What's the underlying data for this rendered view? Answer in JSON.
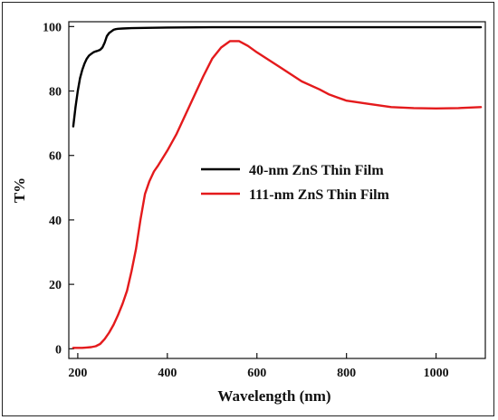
{
  "chart_data": {
    "type": "line",
    "xlabel": "Wavelength (nm)",
    "ylabel": "T%",
    "xlim": [
      180,
      1110
    ],
    "ylim": [
      -3,
      101.5
    ],
    "xticks": [
      200,
      400,
      600,
      800,
      1000
    ],
    "yticks": [
      0,
      20,
      40,
      60,
      80,
      100
    ],
    "legend_position": "center-right",
    "grid": false,
    "series": [
      {
        "name": "40-nm ZnS Thin Film",
        "color": "#000000",
        "x": [
          190,
          195,
          200,
          205,
          210,
          215,
          220,
          225,
          230,
          235,
          240,
          245,
          250,
          255,
          260,
          265,
          270,
          275,
          280,
          285,
          290,
          300,
          320,
          350,
          400,
          500,
          600,
          700,
          800,
          900,
          1000,
          1100
        ],
        "y": [
          69,
          75,
          80,
          84,
          86.5,
          88.5,
          90,
          91,
          91.5,
          92,
          92.3,
          92.5,
          92.8,
          93.5,
          95,
          97,
          98,
          98.5,
          99,
          99.2,
          99.3,
          99.4,
          99.5,
          99.6,
          99.7,
          99.8,
          99.8,
          99.8,
          99.8,
          99.8,
          99.8,
          99.8
        ]
      },
      {
        "name": "111-nm ZnS Thin Film",
        "color": "#e41a1c",
        "x": [
          190,
          200,
          210,
          220,
          230,
          240,
          250,
          260,
          270,
          280,
          290,
          300,
          310,
          320,
          330,
          340,
          350,
          360,
          370,
          380,
          400,
          420,
          440,
          460,
          480,
          500,
          520,
          540,
          560,
          580,
          600,
          650,
          700,
          740,
          760,
          780,
          800,
          850,
          900,
          950,
          1000,
          1050,
          1100
        ],
        "y": [
          0.3,
          0.3,
          0.3,
          0.4,
          0.5,
          0.8,
          1.5,
          3,
          5,
          7.5,
          10.5,
          14,
          18,
          24,
          31,
          40,
          48,
          52,
          55,
          57,
          61.5,
          66.5,
          72.5,
          78.5,
          84.5,
          90,
          93.5,
          95.5,
          95.5,
          94,
          92,
          87.5,
          83,
          80.5,
          79,
          78,
          77,
          76,
          75,
          74.7,
          74.6,
          74.7,
          75
        ]
      }
    ]
  }
}
